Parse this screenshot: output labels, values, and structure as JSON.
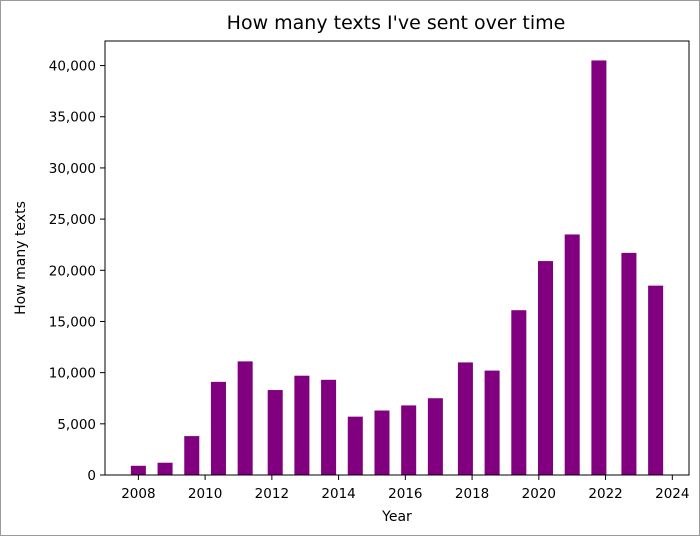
{
  "chart_data": {
    "type": "bar",
    "title": "How many texts I've sent over time",
    "xlabel": "Year",
    "ylabel": "How many texts",
    "bar_color": "#800080",
    "xlim": [
      2007.0,
      2024.5
    ],
    "ylim": [
      0,
      42400
    ],
    "grid": false,
    "x_ticks": [
      2008,
      2010,
      2012,
      2014,
      2016,
      2018,
      2020,
      2022,
      2024
    ],
    "x_tick_labels": [
      "2008",
      "2010",
      "2012",
      "2014",
      "2016",
      "2018",
      "2020",
      "2022",
      "2024"
    ],
    "y_ticks": [
      0,
      5000,
      10000,
      15000,
      20000,
      25000,
      30000,
      35000,
      40000
    ],
    "y_tick_labels": [
      "0",
      "5,000",
      "10,000",
      "15,000",
      "20,000",
      "25,000",
      "30,000",
      "35,000",
      "40,000"
    ],
    "bar_width_years": 0.45,
    "bars": [
      {
        "x": 2008.0,
        "value": 900
      },
      {
        "x": 2008.8,
        "value": 1200
      },
      {
        "x": 2009.6,
        "value": 3800
      },
      {
        "x": 2010.4,
        "value": 9100
      },
      {
        "x": 2011.2,
        "value": 11100
      },
      {
        "x": 2012.1,
        "value": 8300
      },
      {
        "x": 2012.9,
        "value": 9700
      },
      {
        "x": 2013.7,
        "value": 9300
      },
      {
        "x": 2014.5,
        "value": 5700
      },
      {
        "x": 2015.3,
        "value": 6300
      },
      {
        "x": 2016.1,
        "value": 6800
      },
      {
        "x": 2016.9,
        "value": 7500
      },
      {
        "x": 2017.8,
        "value": 11000
      },
      {
        "x": 2018.6,
        "value": 10200
      },
      {
        "x": 2019.4,
        "value": 16100
      },
      {
        "x": 2020.2,
        "value": 20900
      },
      {
        "x": 2021.0,
        "value": 23500
      },
      {
        "x": 2021.8,
        "value": 40500
      },
      {
        "x": 2022.7,
        "value": 21700
      },
      {
        "x": 2023.5,
        "value": 18500
      }
    ]
  }
}
